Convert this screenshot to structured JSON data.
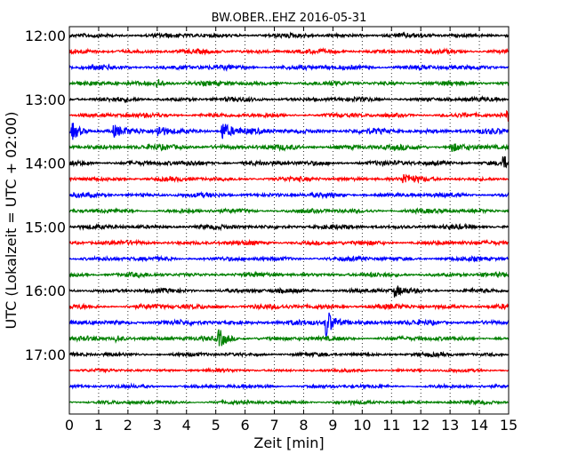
{
  "chart_data": {
    "type": "line",
    "title": "BW.OBER..EHZ 2016-05-31",
    "xlabel": "Zeit  [min]",
    "ylabel": "UTC (Lokalzeit = UTC + 02:00)",
    "xlim": [
      0,
      15
    ],
    "x_ticks": [
      0,
      1,
      2,
      3,
      4,
      5,
      6,
      7,
      8,
      9,
      10,
      11,
      12,
      13,
      14,
      15
    ],
    "x_tick_labels": [
      "0",
      "1",
      "2",
      "3",
      "4",
      "5",
      "6",
      "7",
      "8",
      "9",
      "10",
      "11",
      "12",
      "13",
      "14",
      "15"
    ],
    "y_tick_labels": [
      "12:00",
      "13:00",
      "14:00",
      "15:00",
      "16:00",
      "17:00"
    ],
    "grid": "vertical dotted lines at each minute",
    "color_cycle": [
      "#000000",
      "#ff0000",
      "#0000ff",
      "#008000"
    ],
    "traces": [
      {
        "start": "12:00",
        "baseline_amplitude": 2.5,
        "events": []
      },
      {
        "start": "12:15",
        "baseline_amplitude": 2.5,
        "events": []
      },
      {
        "start": "12:30",
        "baseline_amplitude": 2.8,
        "events": []
      },
      {
        "start": "12:45",
        "baseline_amplitude": 2.5,
        "events": [
          {
            "minute": 3.0,
            "amplitude": 5
          }
        ]
      },
      {
        "start": "13:00",
        "baseline_amplitude": 2.5,
        "events": []
      },
      {
        "start": "13:15",
        "baseline_amplitude": 2.5,
        "events": [
          {
            "minute": 14.95,
            "amplitude": 7
          }
        ]
      },
      {
        "start": "13:30",
        "baseline_amplitude": 3.0,
        "events": [
          {
            "minute": 0.1,
            "amplitude": 9
          },
          {
            "minute": 1.5,
            "amplitude": 6
          },
          {
            "minute": 3.0,
            "amplitude": 7
          },
          {
            "minute": 5.2,
            "amplitude": 12
          }
        ]
      },
      {
        "start": "13:45",
        "baseline_amplitude": 3.0,
        "events": [
          {
            "minute": 13.0,
            "amplitude": 6
          }
        ]
      },
      {
        "start": "14:00",
        "baseline_amplitude": 2.8,
        "events": [
          {
            "minute": 14.8,
            "amplitude": 6
          }
        ]
      },
      {
        "start": "14:15",
        "baseline_amplitude": 2.5,
        "events": [
          {
            "minute": 11.4,
            "amplitude": 6
          }
        ]
      },
      {
        "start": "14:30",
        "baseline_amplitude": 2.5,
        "events": []
      },
      {
        "start": "14:45",
        "baseline_amplitude": 2.5,
        "events": []
      },
      {
        "start": "15:00",
        "baseline_amplitude": 2.5,
        "events": []
      },
      {
        "start": "15:15",
        "baseline_amplitude": 2.5,
        "events": []
      },
      {
        "start": "15:30",
        "baseline_amplitude": 2.5,
        "events": []
      },
      {
        "start": "15:45",
        "baseline_amplitude": 2.5,
        "events": []
      },
      {
        "start": "16:00",
        "baseline_amplitude": 2.5,
        "events": [
          {
            "minute": 11.1,
            "amplitude": 6
          }
        ]
      },
      {
        "start": "16:15",
        "baseline_amplitude": 2.8,
        "events": []
      },
      {
        "start": "16:30",
        "baseline_amplitude": 2.8,
        "events": [
          {
            "minute": 8.75,
            "amplitude": 18
          }
        ]
      },
      {
        "start": "16:45",
        "baseline_amplitude": 2.5,
        "events": [
          {
            "minute": 1.6,
            "amplitude": 4
          },
          {
            "minute": 5.1,
            "amplitude": 10
          }
        ]
      },
      {
        "start": "17:00",
        "baseline_amplitude": 2.2,
        "events": []
      },
      {
        "start": "17:15",
        "baseline_amplitude": 1.8,
        "events": []
      },
      {
        "start": "17:30",
        "baseline_amplitude": 2.0,
        "events": []
      },
      {
        "start": "17:45",
        "baseline_amplitude": 2.0,
        "events": []
      }
    ]
  }
}
